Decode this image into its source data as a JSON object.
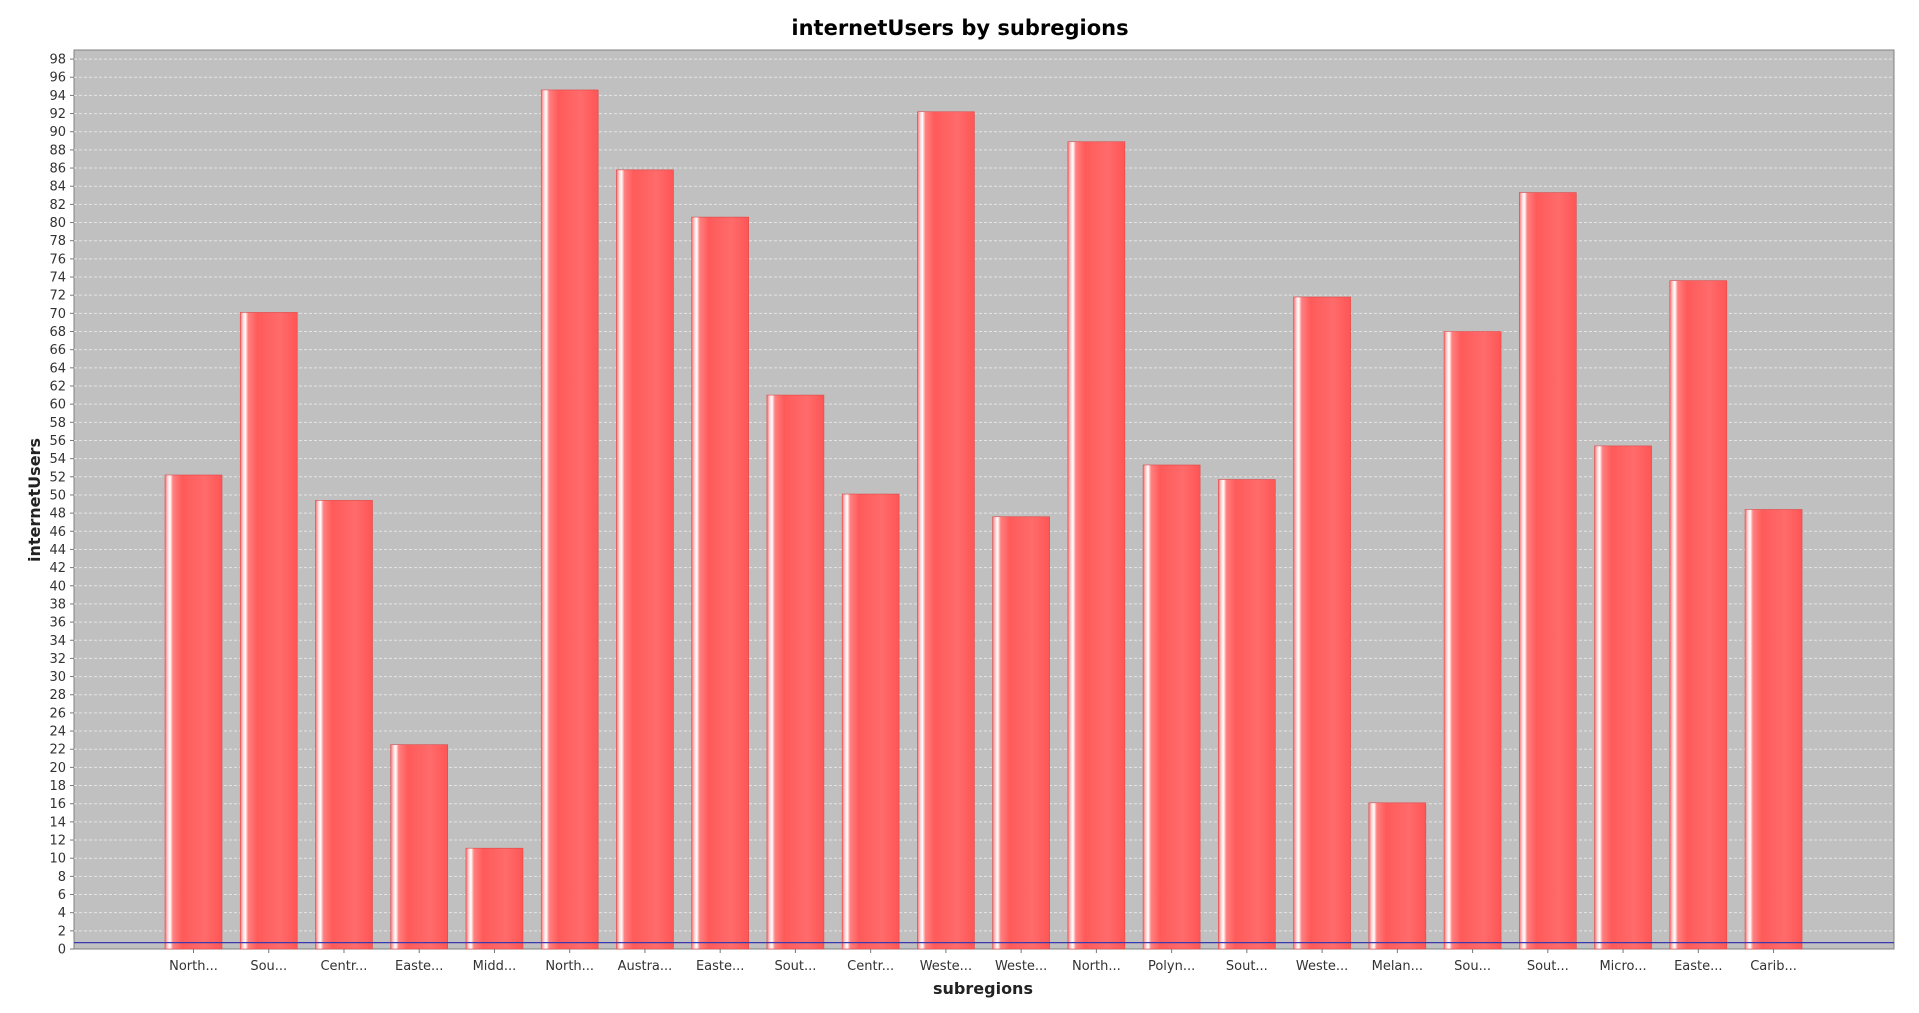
{
  "chart_data": {
    "type": "bar",
    "title": "internetUsers by subregions",
    "xlabel": "subregions",
    "ylabel": "internetUsers",
    "ylim": [
      0,
      99
    ],
    "ytick_step": 2,
    "grid": true,
    "legend": "none",
    "categories": [
      "North...",
      "Sou...",
      "Centr...",
      "Easte...",
      "Midd...",
      "North...",
      "Austra...",
      "Easte...",
      "Sout...",
      "Centr...",
      "Weste...",
      "Weste...",
      "North...",
      "Polyn...",
      "Sout...",
      "Weste...",
      "Melan...",
      "Sou...",
      "Sout...",
      "Micro...",
      "Easte...",
      "Carib..."
    ],
    "values": [
      52.2,
      70.1,
      49.4,
      22.5,
      11.1,
      94.6,
      85.8,
      80.6,
      61.0,
      50.1,
      92.2,
      47.6,
      88.9,
      53.3,
      51.7,
      71.8,
      16.1,
      68.0,
      83.3,
      55.4,
      73.6,
      48.4
    ],
    "baseline_marker": 0.7,
    "colors": {
      "bar": "#ff5f5f",
      "bar_highlight": "#ffffff",
      "plot_background": "#c0c0c0",
      "gridline": "#e4e4e4",
      "baseline_marker": "#3a3ab0"
    }
  }
}
